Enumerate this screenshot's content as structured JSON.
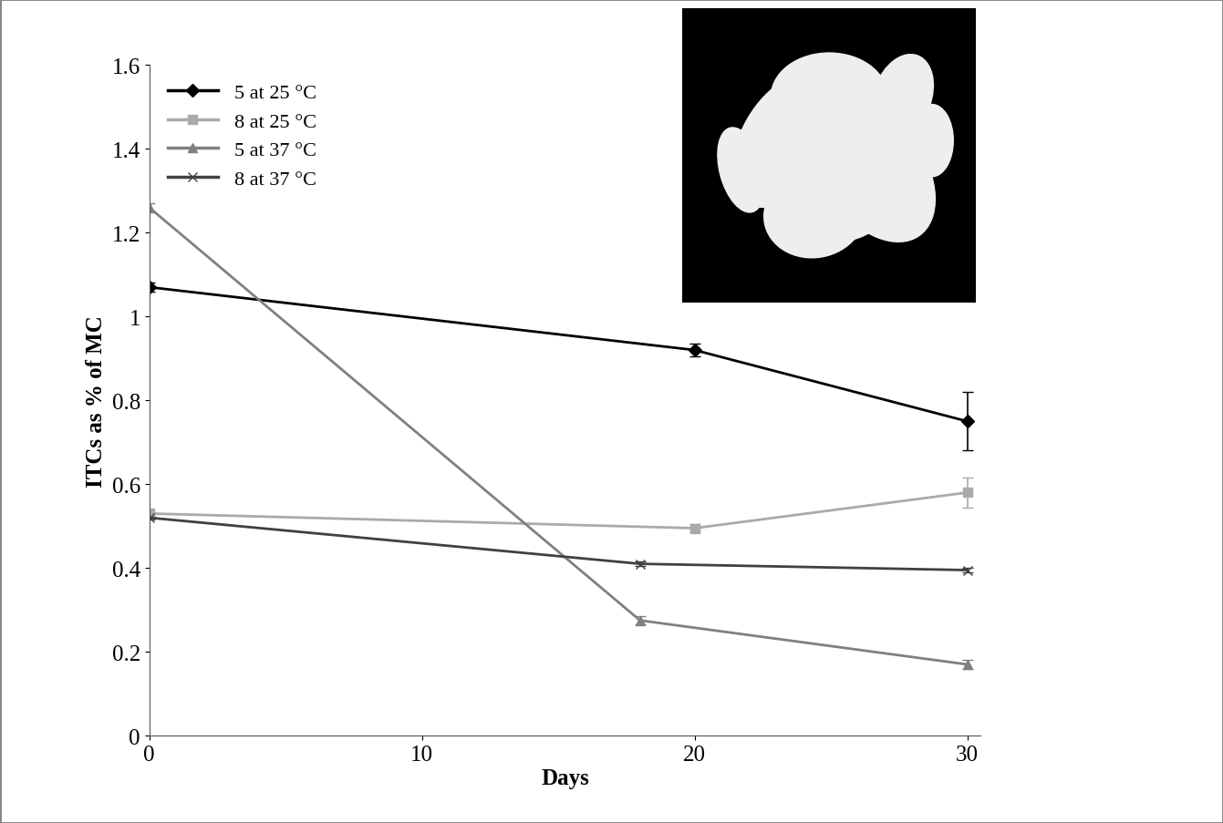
{
  "chart_data": {
    "type": "line",
    "x_label": "Days",
    "y_label": "ITCs as % of MC",
    "xlim": [
      0,
      30.5
    ],
    "xticks": [
      0,
      10,
      20,
      30
    ],
    "ylim": [
      0,
      1.6
    ],
    "yticks": [
      0,
      0.2,
      0.4,
      0.6,
      0.8,
      1,
      1.2,
      1.4,
      1.6
    ],
    "legend": "upper left",
    "grid": false,
    "series": [
      {
        "name": "5 at 25 °C",
        "color": "#000000",
        "marker": "diamond",
        "line_style": "solid",
        "x": [
          0,
          20,
          30
        ],
        "values": [
          1.07,
          0.92,
          0.75
        ],
        "errors": [
          0.01,
          0.015,
          0.07
        ]
      },
      {
        "name": "8 at 25 °C",
        "color": "#aaaaaa",
        "marker": "square",
        "line_style": "solid",
        "x": [
          0,
          20,
          30
        ],
        "values": [
          0.53,
          0.495,
          0.58
        ],
        "errors": [
          0.005,
          0.01,
          0.035
        ]
      },
      {
        "name": "5 at 37 °C",
        "color": "#808080",
        "marker": "triangle",
        "line_style": "solid",
        "x": [
          0,
          18,
          30
        ],
        "values": [
          1.26,
          0.275,
          0.17
        ],
        "errors": [
          0.01,
          0.01,
          0.01
        ]
      },
      {
        "name": "8 at 37 °C",
        "color": "#404040",
        "marker": "x",
        "line_style": "solid",
        "x": [
          0,
          18,
          30
        ],
        "values": [
          0.52,
          0.41,
          0.395
        ],
        "errors": [
          0.005,
          0.005,
          0.005
        ]
      }
    ]
  }
}
